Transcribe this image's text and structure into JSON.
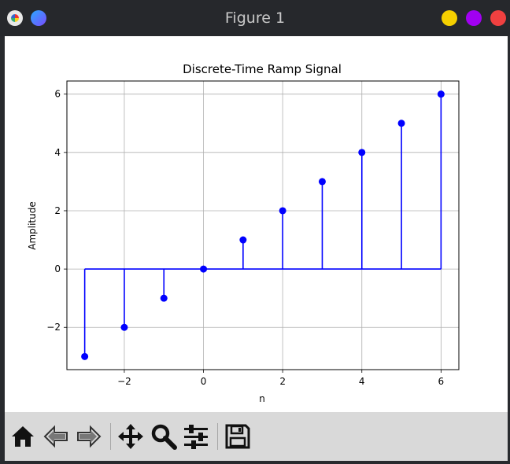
{
  "window": {
    "title": "Figure 1",
    "controls": {
      "minimize_color": "#f5d000",
      "maximize_color": "#a100f2",
      "close_color": "#f04040"
    }
  },
  "toolbar": {
    "items": [
      {
        "icon": "home-icon"
      },
      {
        "icon": "back-arrow-icon"
      },
      {
        "icon": "forward-arrow-icon"
      },
      {
        "icon": "pan-icon"
      },
      {
        "icon": "zoom-icon"
      },
      {
        "icon": "configure-subplots-icon"
      },
      {
        "icon": "save-icon"
      }
    ]
  },
  "chart_data": {
    "type": "stem",
    "title": "Discrete-Time Ramp Signal",
    "xlabel": "n",
    "ylabel": "Amplitude",
    "x": [
      -3,
      -2,
      -1,
      0,
      1,
      2,
      3,
      4,
      5,
      6
    ],
    "y": [
      -3,
      -2,
      -1,
      0,
      1,
      2,
      3,
      4,
      5,
      6
    ],
    "xlim": [
      -3.45,
      6.45
    ],
    "ylim": [
      -3.45,
      6.45
    ],
    "xticks": [
      -2,
      0,
      2,
      4,
      6
    ],
    "xtick_labels": [
      "−2",
      "0",
      "2",
      "4",
      "6"
    ],
    "yticks": [
      -2,
      0,
      2,
      4,
      6
    ],
    "ytick_labels": [
      "−2",
      "0",
      "2",
      "4",
      "6"
    ],
    "grid": true,
    "color": "#0000ff"
  }
}
